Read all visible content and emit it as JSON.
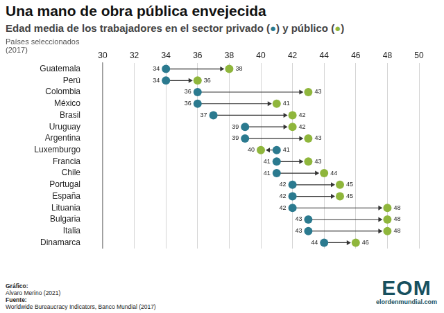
{
  "chart_data": {
    "type": "dumbbell",
    "title": "Una mano de obra pública envejecida",
    "subtitle": "Edad media de los trabajadores en el sector privado (●) y público (●)",
    "note": "Países seleccionados (2017)",
    "orientation": "horizontal",
    "categories": [
      "Guatemala",
      "Perú",
      "Colombia",
      "México",
      "Brasil",
      "Uruguay",
      "Argentina",
      "Luxemburgo",
      "Francia",
      "Chile",
      "Portugal",
      "España",
      "Lituania",
      "Bulgaria",
      "Italia",
      "Dinamarca"
    ],
    "series": [
      {
        "name": "privado",
        "color": "#2b7a8f",
        "values": [
          34,
          34,
          36,
          36,
          37,
          39,
          39,
          41,
          41,
          41,
          42,
          42,
          42,
          43,
          43,
          44
        ]
      },
      {
        "name": "público",
        "color": "#8fb63c",
        "values": [
          38,
          36,
          43,
          41,
          42,
          42,
          43,
          40,
          43,
          44,
          45,
          45,
          48,
          48,
          48,
          46
        ]
      }
    ],
    "xlim": [
      30,
      50
    ],
    "xticks": [
      30,
      32,
      34,
      36,
      38,
      40,
      42,
      44,
      46,
      48,
      50
    ],
    "grid": true,
    "data_labels": true,
    "credits": [
      {
        "label": "Gráfico:",
        "text": "Álvaro Merino (2021)"
      },
      {
        "label": "Fuente:",
        "text": "Worldwide Bureaucracy Indicators, Banco Mundial (2017)"
      }
    ],
    "logo": "EOM",
    "website": "elordenmundial.com"
  }
}
